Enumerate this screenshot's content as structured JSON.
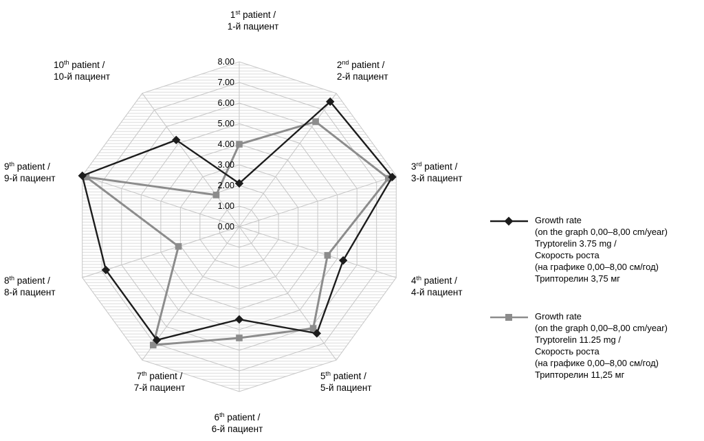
{
  "chart_data": {
    "type": "radar",
    "title": "",
    "axis_range": [
      0,
      8
    ],
    "axis_step": 1,
    "grid": true,
    "legend_position": "right",
    "radial_ticks": [
      "0.00",
      "1.00",
      "2.00",
      "3.00",
      "4.00",
      "5.00",
      "6.00",
      "7.00",
      "8.00"
    ],
    "categories": [
      {
        "pre": "1",
        "sup": "st",
        "post": "patient /",
        "ru": "1-й пациент"
      },
      {
        "pre": "2",
        "sup": "nd",
        "post": "patient /",
        "ru": "2-й пациент"
      },
      {
        "pre": "3",
        "sup": "rd",
        "post": "patient /",
        "ru": "3-й пациент"
      },
      {
        "pre": "4",
        "sup": "th",
        "post": "patient /",
        "ru": "4-й пациент"
      },
      {
        "pre": "5",
        "sup": "th",
        "post": "patient /",
        "ru": "5-й пациент"
      },
      {
        "pre": "6",
        "sup": "th",
        "post": "patient /",
        "ru": "6-й пациент"
      },
      {
        "pre": "7",
        "sup": "th",
        "post": "patient /",
        "ru": "7-й пациент"
      },
      {
        "pre": "8",
        "sup": "th",
        "post": "patient /",
        "ru": "8-й пациент"
      },
      {
        "pre": "9",
        "sup": "th",
        "post": "patient /",
        "ru": "9-й пациент"
      },
      {
        "pre": "10",
        "sup": "th",
        "post": "patient /",
        "ru": "10-й пациент"
      }
    ],
    "series": [
      {
        "name": "Growth rate (on the graph 0,00–8,00 cm/year) Tryptorelin 3.75 mg / Скорость роста (на графике 0,00–8,00 см/год) Трипторелин 3,75 мг",
        "marker": "diamond",
        "color": "#1c1c1c",
        "values": [
          2.1,
          7.5,
          7.8,
          5.3,
          6.4,
          4.5,
          6.8,
          6.8,
          8.0,
          5.2
        ]
      },
      {
        "name": "Growth rate (on the graph 0,00–8,00 cm/year) Tryptorelin 11.25 mg / Скорость роста (на графике 0,00–8,00 см/год) Трипторелин 11,25 мг",
        "marker": "square",
        "color": "#8c8c8c",
        "values": [
          4.0,
          6.3,
          7.6,
          4.5,
          6.1,
          5.4,
          7.1,
          3.1,
          7.8,
          1.9
        ]
      }
    ],
    "legend": [
      {
        "marker": "diamond",
        "color": "#1c1c1c",
        "lines": [
          "Growth rate",
          "(on the graph 0,00–8,00 cm/year)",
          "Tryptorelin 3.75 mg /",
          "Скорость роста",
          "(на графике 0,00–8,00 см/год)",
          "Трипторелин 3,75 мг"
        ]
      },
      {
        "marker": "square",
        "color": "#8c8c8c",
        "lines": [
          "Growth rate",
          "(on the graph 0,00–8,00 cm/year)",
          "Tryptorelin 11.25 mg /",
          "Скорость роста",
          "(на графике 0,00–8,00 см/год)",
          "Трипторелин 11,25 мг"
        ]
      }
    ],
    "colors": {
      "grid": "#c6c6c6",
      "hatch": "#dbdbdb",
      "text": "#000000"
    }
  }
}
